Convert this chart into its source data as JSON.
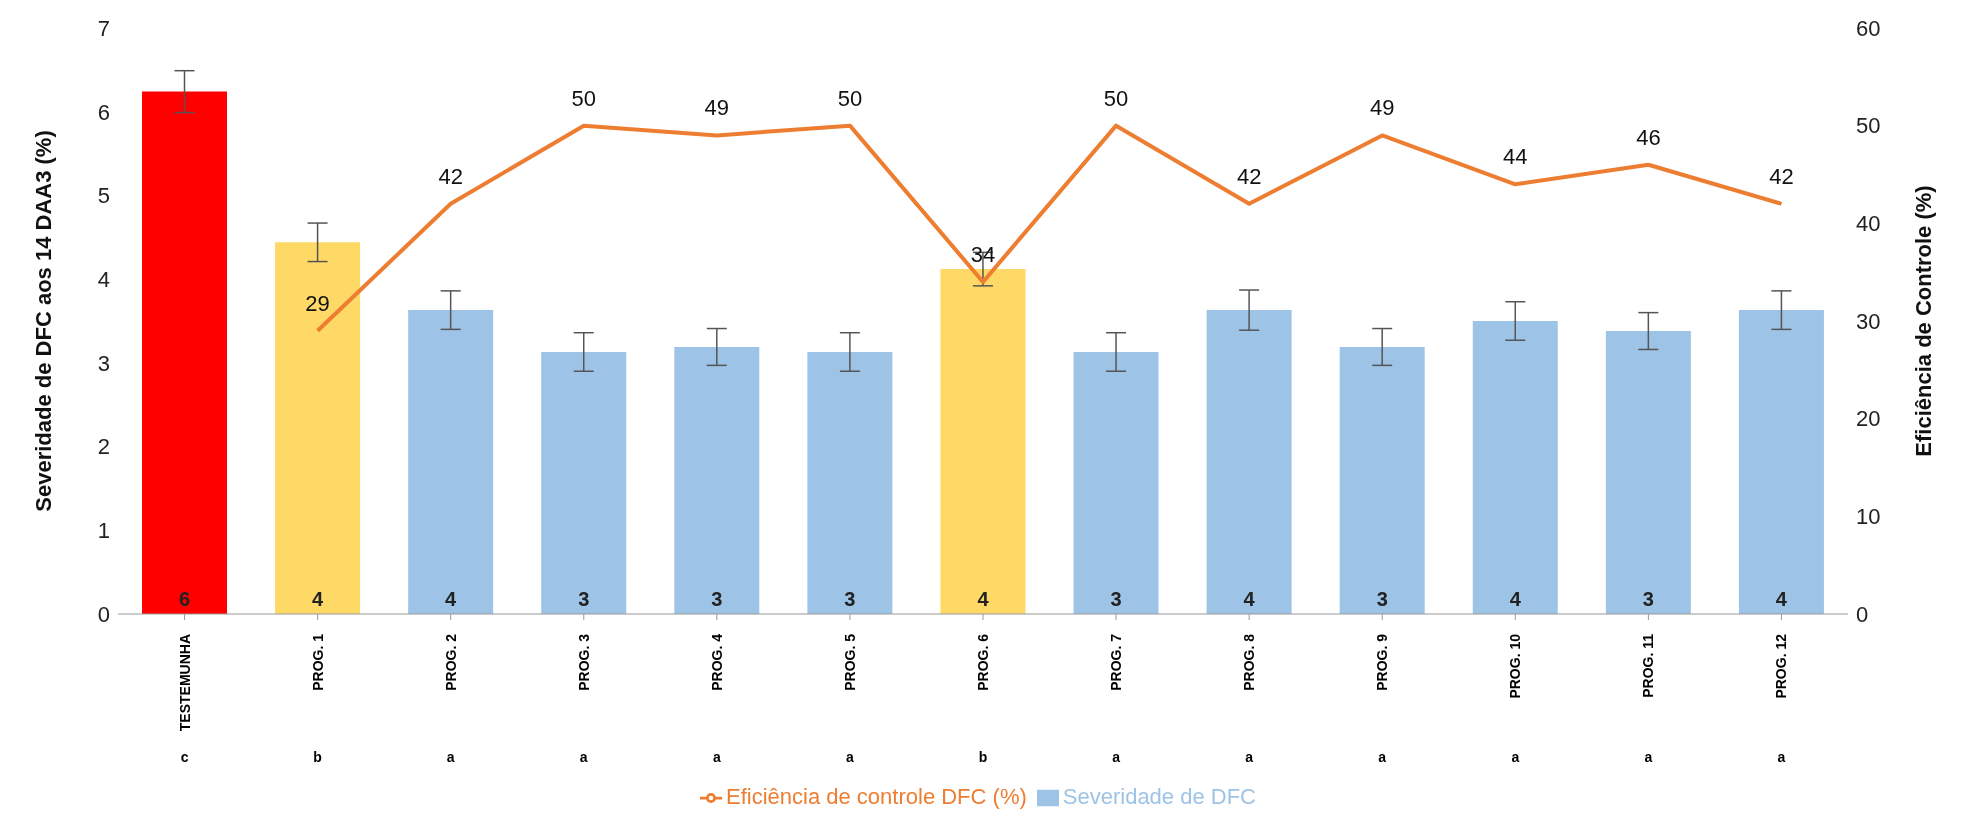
{
  "chart_data": {
    "type": "bar",
    "ylabel": "Severidade de DFC aos 14 DAA3   (%)",
    "y2label": "Eficiência de Controle (%)",
    "categories": [
      "TESTEMUNHA",
      "PROG. 1",
      "PROG. 2",
      "PROG. 3",
      "PROG. 4",
      "PROG. 5",
      "PROG. 6",
      "PROG. 7",
      "PROG. 8",
      "PROG. 9",
      "PROG. 10",
      "PROG. 11",
      "PROG. 12"
    ],
    "series": [
      {
        "name": "Severidade de DFC",
        "color": "#9dc3e6",
        "colors": [
          "#ff0000",
          "#ffd966",
          "#9dc3e6",
          "#9dc3e6",
          "#9dc3e6",
          "#9dc3e6",
          "#ffd966",
          "#9dc3e6",
          "#9dc3e6",
          "#9dc3e6",
          "#9dc3e6",
          "#9dc3e6",
          "#9dc3e6"
        ],
        "values": [
          6.24,
          4.44,
          3.63,
          3.13,
          3.19,
          3.13,
          4.12,
          3.13,
          3.63,
          3.19,
          3.5,
          3.38,
          3.63
        ],
        "errors": [
          0.25,
          0.23,
          0.23,
          0.23,
          0.22,
          0.23,
          0.2,
          0.23,
          0.24,
          0.22,
          0.23,
          0.22,
          0.23
        ],
        "value_labels": [
          "6",
          "4",
          "4",
          "3",
          "3",
          "3",
          "4",
          "3",
          "4",
          "3",
          "4",
          "3",
          "4"
        ]
      },
      {
        "name": "Eficiência de controle DFC (%)",
        "type": "line",
        "axis": "y2",
        "color": "#ed7d31",
        "values": [
          null,
          29,
          42,
          50,
          49,
          50,
          34,
          50,
          42,
          49,
          44,
          46,
          42
        ],
        "data_labels": true
      }
    ],
    "ylim": [
      0,
      7
    ],
    "yticks": [
      0,
      1,
      2,
      3,
      4,
      5,
      6,
      7
    ],
    "y2lim": [
      0,
      60
    ],
    "y2ticks": [
      0,
      10,
      20,
      30,
      40,
      50,
      60
    ],
    "annotations": [
      "c",
      "b",
      "a",
      "a",
      "a",
      "a",
      "b",
      "a",
      "a",
      "a",
      "a",
      "a",
      "a"
    ],
    "grid": false,
    "legend": "bottom",
    "marker": "none",
    "line_style": "solid"
  }
}
